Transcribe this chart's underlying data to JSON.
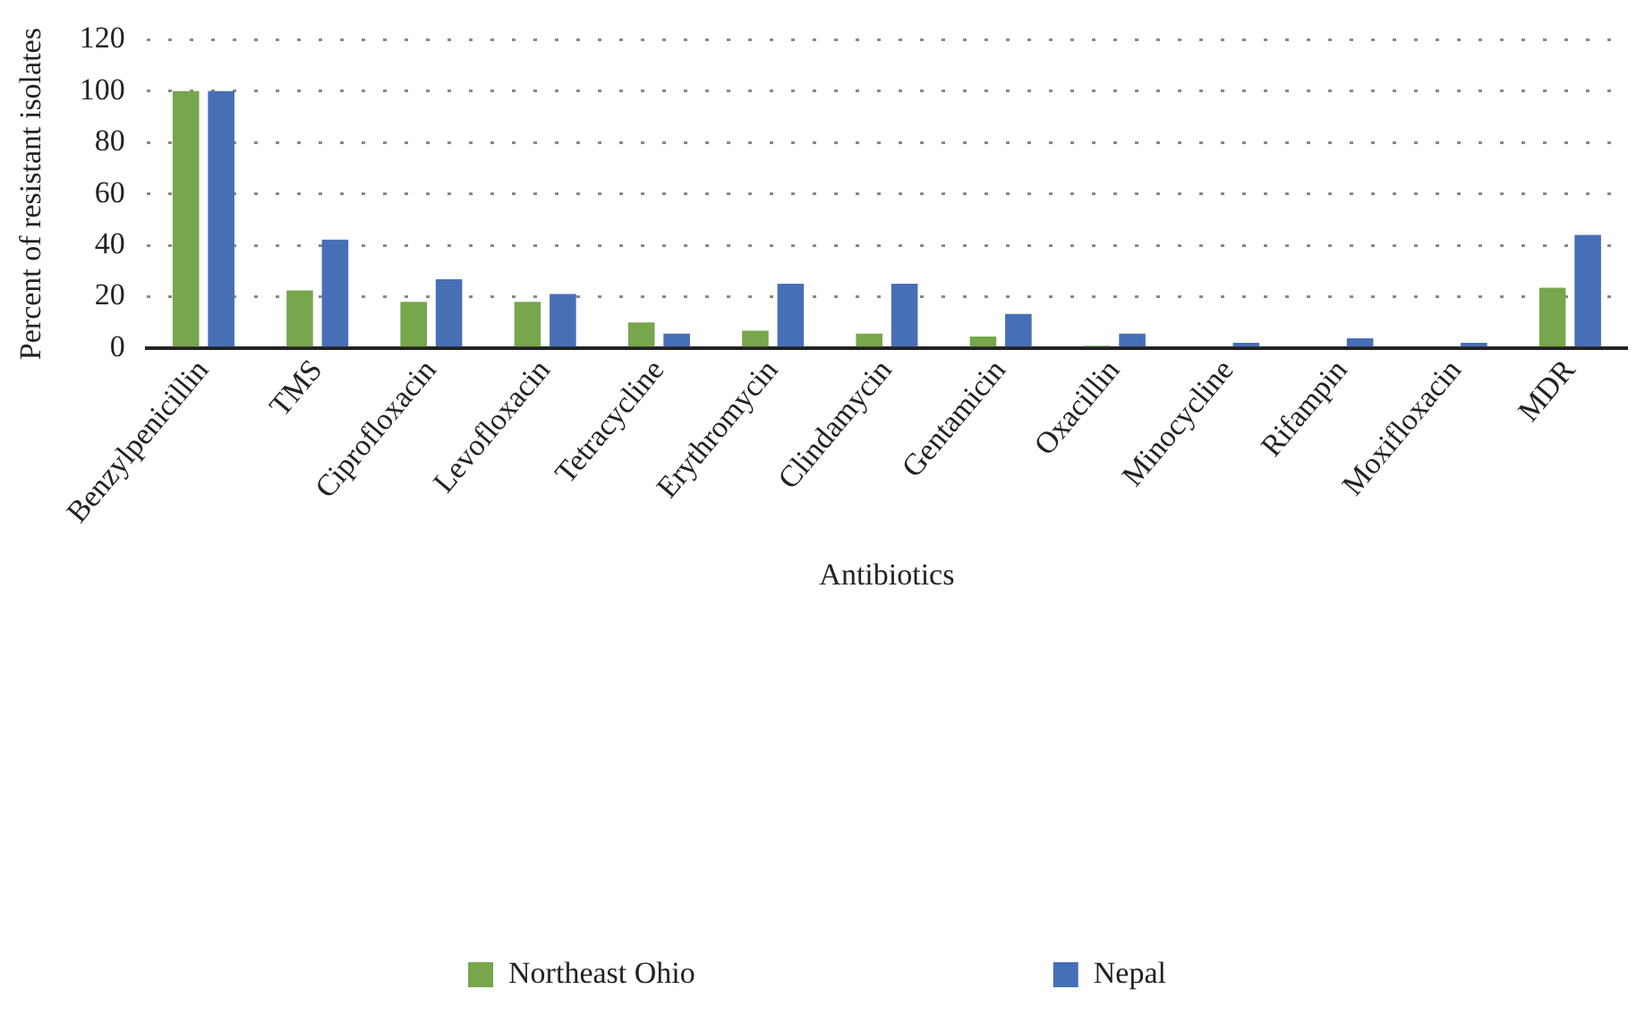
{
  "chart_data": {
    "type": "bar",
    "xlabel": "Antibiotics",
    "ylabel": "Percent of resistant isolates",
    "categories": [
      "Benzylpenicillin",
      "TMS",
      "Ciprofloxacin",
      "Levofloxacin",
      "Tetracycline",
      "Erythromycin",
      "Clindamycin",
      "Gentamicin",
      "Oxacillin",
      "Minocycline",
      "Rifampin",
      "Moxifloxacin",
      "MDR"
    ],
    "series": [
      {
        "name": "Northeast Ohio",
        "color": "#77a64d",
        "values": [
          100,
          22.4,
          18,
          18,
          10,
          6.7,
          5.6,
          4.5,
          0.9,
          0,
          0,
          0,
          23.5
        ]
      },
      {
        "name": "Nepal",
        "color": "#476fb5",
        "values": [
          100,
          42.2,
          26.8,
          21,
          5.6,
          25,
          25,
          13.3,
          5.6,
          2,
          3.8,
          2,
          44
        ]
      }
    ],
    "ylim": [
      0,
      120
    ],
    "yticks": [
      0,
      20,
      40,
      60,
      80,
      100,
      120
    ],
    "grid": "y",
    "legend": "bottom"
  }
}
